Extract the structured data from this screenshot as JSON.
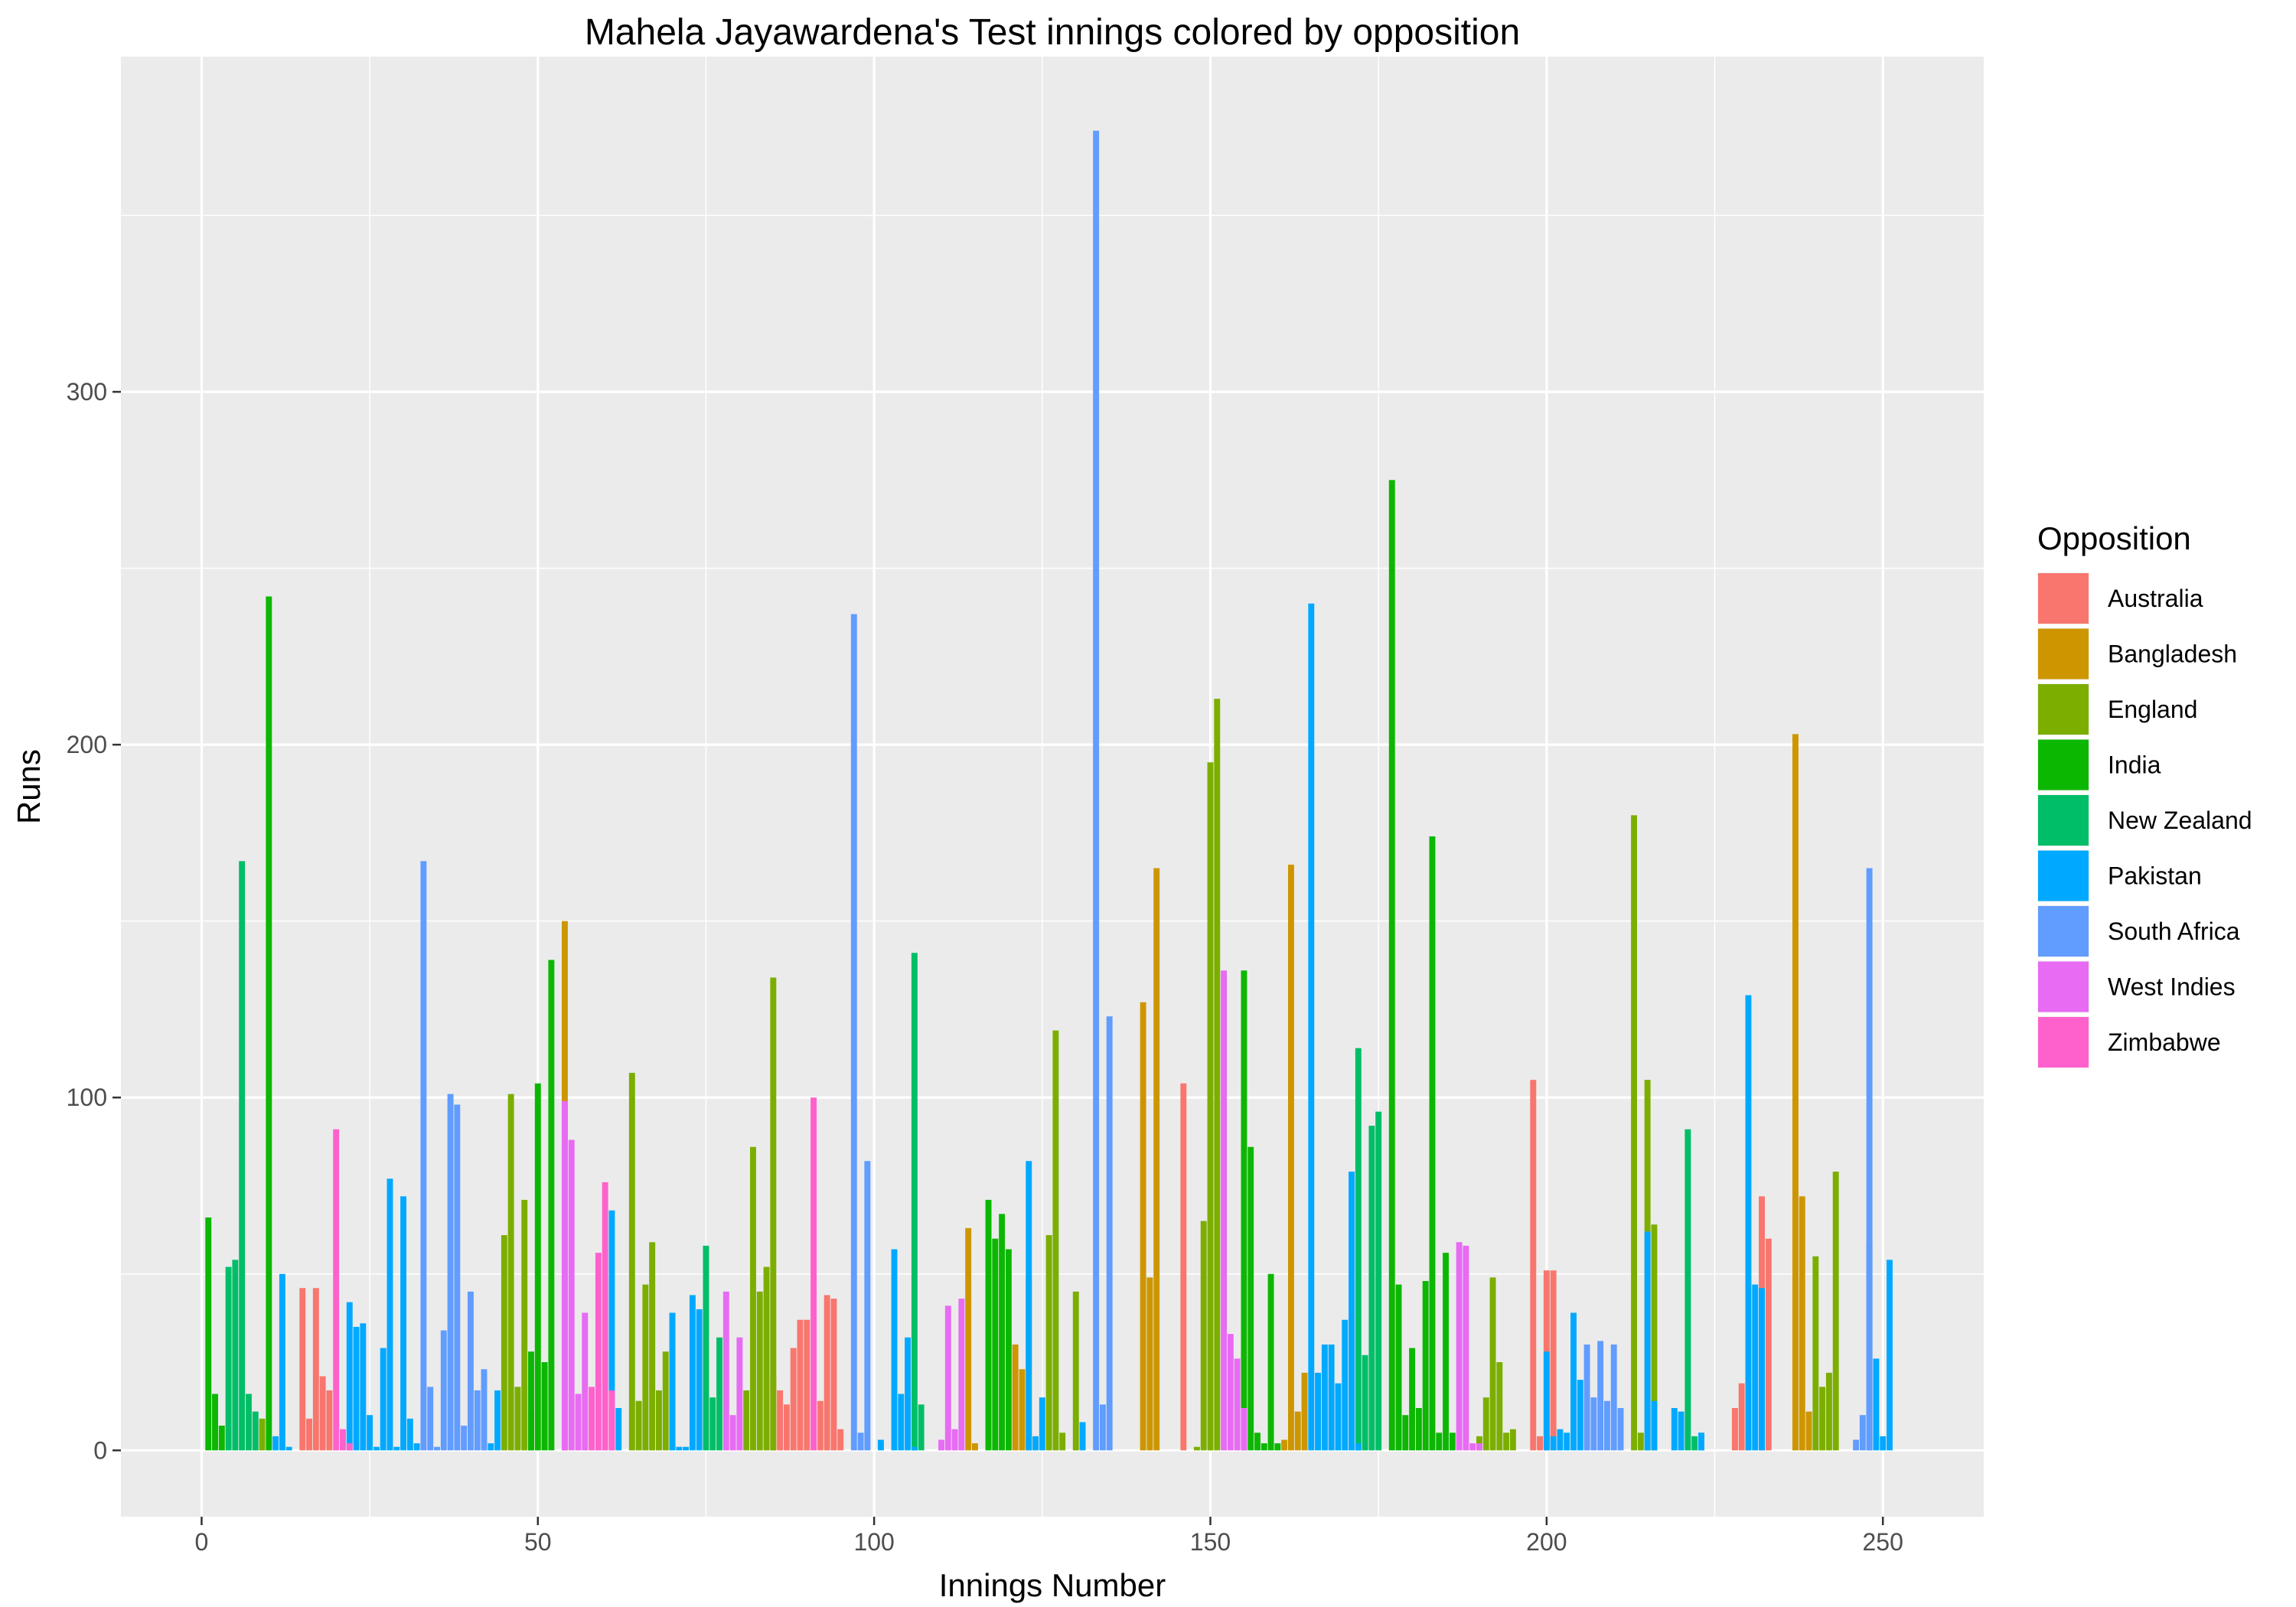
{
  "chart_data": {
    "type": "bar",
    "title": "Mahela Jayawardena's Test innings colored by opposition",
    "xlabel": "Innings Number",
    "ylabel": "Runs",
    "xlim": [
      -12,
      265
    ],
    "ylim": [
      -18.8,
      395
    ],
    "x_ticks": [
      0,
      50,
      100,
      150,
      200,
      250
    ],
    "y_ticks": [
      0,
      100,
      200,
      300
    ],
    "grid": true,
    "legend": {
      "title": "Opposition",
      "position": "right",
      "entries": [
        {
          "name": "Australia",
          "color": "#F8766D"
        },
        {
          "name": "Bangladesh",
          "color": "#CD9600"
        },
        {
          "name": "England",
          "color": "#7CAE00"
        },
        {
          "name": "India",
          "color": "#0CB702"
        },
        {
          "name": "New Zealand",
          "color": "#00BE67"
        },
        {
          "name": "Pakistan",
          "color": "#00A9FF"
        },
        {
          "name": "South Africa",
          "color": "#619CFF"
        },
        {
          "name": "West Indies",
          "color": "#E76BF3"
        },
        {
          "name": "Zimbabwe",
          "color": "#FF61CC"
        }
      ]
    },
    "bar_series": [
      {
        "name": "Australia",
        "points": [
          [
            15,
            46
          ],
          [
            16,
            9
          ],
          [
            17,
            46
          ],
          [
            18,
            21
          ],
          [
            19,
            17
          ],
          [
            85,
            21
          ],
          [
            86,
            17
          ],
          [
            87,
            13
          ],
          [
            88,
            29
          ],
          [
            89,
            37
          ],
          [
            90,
            37
          ],
          [
            92,
            14
          ],
          [
            93,
            44
          ],
          [
            94,
            43
          ],
          [
            95,
            6
          ],
          [
            146,
            104
          ],
          [
            198,
            105
          ],
          [
            199,
            4
          ],
          [
            200,
            51
          ],
          [
            201,
            51
          ],
          [
            228,
            12
          ],
          [
            229,
            19
          ],
          [
            230,
            3
          ],
          [
            232,
            72
          ],
          [
            233,
            60
          ]
        ]
      },
      {
        "name": "Bangladesh",
        "points": [
          [
            54,
            150
          ],
          [
            114,
            63
          ],
          [
            115,
            2
          ],
          [
            121,
            30
          ],
          [
            122,
            23
          ],
          [
            123,
            49
          ],
          [
            140,
            127
          ],
          [
            141,
            49
          ],
          [
            142,
            165
          ],
          [
            161,
            3
          ],
          [
            162,
            166
          ],
          [
            163,
            11
          ],
          [
            164,
            22
          ],
          [
            237,
            203
          ],
          [
            238,
            72
          ],
          [
            239,
            11
          ]
        ]
      },
      {
        "name": "England",
        "points": [
          [
            9,
            9
          ],
          [
            45,
            61
          ],
          [
            46,
            101
          ],
          [
            47,
            18
          ],
          [
            48,
            71
          ],
          [
            49,
            11
          ],
          [
            64,
            107
          ],
          [
            65,
            14
          ],
          [
            66,
            47
          ],
          [
            67,
            59
          ],
          [
            68,
            17
          ],
          [
            69,
            28
          ],
          [
            81,
            17
          ],
          [
            82,
            86
          ],
          [
            83,
            45
          ],
          [
            84,
            52
          ],
          [
            85,
            134
          ],
          [
            126,
            61
          ],
          [
            127,
            119
          ],
          [
            128,
            5
          ],
          [
            130,
            45
          ],
          [
            148,
            1
          ],
          [
            149,
            65
          ],
          [
            150,
            195
          ],
          [
            151,
            213
          ],
          [
            190,
            4
          ],
          [
            191,
            15
          ],
          [
            192,
            49
          ],
          [
            193,
            25
          ],
          [
            194,
            5
          ],
          [
            195,
            6
          ],
          [
            213,
            180
          ],
          [
            214,
            5
          ],
          [
            215,
            105
          ],
          [
            216,
            64
          ],
          [
            240,
            55
          ],
          [
            241,
            18
          ],
          [
            242,
            22
          ],
          [
            243,
            79
          ]
        ]
      },
      {
        "name": "India",
        "points": [
          [
            1,
            66
          ],
          [
            2,
            16
          ],
          [
            3,
            7
          ],
          [
            10,
            242
          ],
          [
            49,
            28
          ],
          [
            50,
            104
          ],
          [
            51,
            25
          ],
          [
            52,
            139
          ],
          [
            117,
            71
          ],
          [
            118,
            60
          ],
          [
            119,
            67
          ],
          [
            120,
            57
          ],
          [
            155,
            136
          ],
          [
            156,
            86
          ],
          [
            157,
            5
          ],
          [
            158,
            2
          ],
          [
            159,
            50
          ],
          [
            160,
            2
          ],
          [
            177,
            275
          ],
          [
            178,
            47
          ],
          [
            179,
            10
          ],
          [
            180,
            29
          ],
          [
            181,
            12
          ],
          [
            182,
            48
          ],
          [
            183,
            174
          ],
          [
            184,
            5
          ],
          [
            185,
            56
          ],
          [
            186,
            5
          ]
        ]
      },
      {
        "name": "New Zealand",
        "points": [
          [
            4,
            52
          ],
          [
            5,
            54
          ],
          [
            6,
            167
          ],
          [
            7,
            16
          ],
          [
            8,
            11
          ],
          [
            75,
            58
          ],
          [
            76,
            15
          ],
          [
            77,
            32
          ],
          [
            106,
            141
          ],
          [
            107,
            13
          ],
          [
            172,
            114
          ],
          [
            173,
            27
          ],
          [
            174,
            92
          ],
          [
            175,
            96
          ],
          [
            221,
            91
          ],
          [
            222,
            4
          ],
          [
            223,
            5
          ]
        ]
      },
      {
        "name": "Pakistan",
        "points": [
          [
            11,
            4
          ],
          [
            12,
            50
          ],
          [
            13,
            1
          ],
          [
            22,
            42
          ],
          [
            23,
            35
          ],
          [
            24,
            36
          ],
          [
            25,
            10
          ],
          [
            26,
            1
          ],
          [
            27,
            29
          ],
          [
            28,
            77
          ],
          [
            29,
            1
          ],
          [
            30,
            72
          ],
          [
            31,
            9
          ],
          [
            32,
            2
          ],
          [
            43,
            2
          ],
          [
            44,
            17
          ],
          [
            61,
            68
          ],
          [
            62,
            12
          ],
          [
            70,
            39
          ],
          [
            71,
            1
          ],
          [
            72,
            1
          ],
          [
            73,
            44
          ],
          [
            74,
            40
          ],
          [
            101,
            3
          ],
          [
            103,
            57
          ],
          [
            104,
            16
          ],
          [
            105,
            32
          ],
          [
            106,
            1
          ],
          [
            123,
            82
          ],
          [
            124,
            4
          ],
          [
            125,
            15
          ],
          [
            131,
            8
          ],
          [
            165,
            240
          ],
          [
            166,
            22
          ],
          [
            167,
            30
          ],
          [
            168,
            30
          ],
          [
            169,
            19
          ],
          [
            170,
            37
          ],
          [
            171,
            79
          ],
          [
            172,
            2
          ],
          [
            200,
            28
          ],
          [
            201,
            4
          ],
          [
            202,
            6
          ],
          [
            203,
            5
          ],
          [
            204,
            39
          ],
          [
            205,
            20
          ],
          [
            215,
            62
          ],
          [
            216,
            14
          ],
          [
            219,
            12
          ],
          [
            220,
            11
          ],
          [
            223,
            5
          ],
          [
            230,
            129
          ],
          [
            231,
            47
          ],
          [
            232,
            46
          ],
          [
            248,
            59
          ],
          [
            249,
            26
          ],
          [
            250,
            4
          ],
          [
            251,
            54
          ]
        ]
      },
      {
        "name": "South Africa",
        "points": [
          [
            33,
            167
          ],
          [
            34,
            18
          ],
          [
            35,
            1
          ],
          [
            36,
            34
          ],
          [
            37,
            101
          ],
          [
            38,
            98
          ],
          [
            39,
            7
          ],
          [
            40,
            45
          ],
          [
            41,
            17
          ],
          [
            42,
            23
          ],
          [
            97,
            237
          ],
          [
            98,
            5
          ],
          [
            99,
            82
          ],
          [
            133,
            374
          ],
          [
            134,
            13
          ],
          [
            135,
            123
          ],
          [
            206,
            30
          ],
          [
            207,
            15
          ],
          [
            208,
            31
          ],
          [
            209,
            14
          ],
          [
            210,
            30
          ],
          [
            211,
            12
          ],
          [
            246,
            3
          ],
          [
            247,
            10
          ],
          [
            248,
            165
          ]
        ]
      },
      {
        "name": "West Indies",
        "points": [
          [
            54,
            99
          ],
          [
            55,
            88
          ],
          [
            56,
            16
          ],
          [
            57,
            39
          ],
          [
            78,
            45
          ],
          [
            79,
            10
          ],
          [
            80,
            32
          ],
          [
            110,
            3
          ],
          [
            111,
            41
          ],
          [
            112,
            6
          ],
          [
            113,
            43
          ],
          [
            152,
            136
          ],
          [
            153,
            33
          ],
          [
            154,
            26
          ],
          [
            155,
            12
          ],
          [
            187,
            59
          ],
          [
            188,
            58
          ],
          [
            189,
            2
          ],
          [
            190,
            2
          ]
        ]
      },
      {
        "name": "Zimbabwe",
        "points": [
          [
            20,
            91
          ],
          [
            21,
            6
          ],
          [
            22,
            2
          ],
          [
            58,
            18
          ],
          [
            59,
            56
          ],
          [
            60,
            76
          ],
          [
            61,
            17
          ],
          [
            91,
            100
          ]
        ]
      }
    ]
  }
}
